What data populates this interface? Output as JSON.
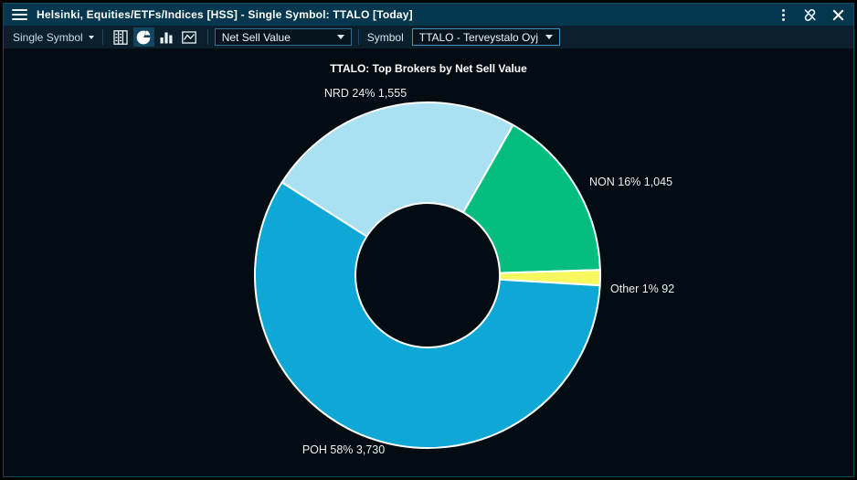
{
  "window": {
    "title": "Helsinki, Equities/ETFs/Indices [HSS] - Single Symbol: TTALO [Today]"
  },
  "toolbar": {
    "mode_select": "Single Symbol",
    "chart_type_buttons": [
      {
        "name": "table-view",
        "active": false
      },
      {
        "name": "pie-chart-view",
        "active": true
      },
      {
        "name": "bar-chart-view",
        "active": false
      },
      {
        "name": "boxed-chart-view",
        "active": false
      }
    ],
    "metric_select": "Net Sell Value",
    "symbol_label": "Symbol",
    "symbol_select": "TTALO - Terveystalo Oyj"
  },
  "colors": {
    "titlebar_bg": "#05384E",
    "toolbar_bg": "#0B202C",
    "chart_bg": "#030C12",
    "combo_border": "#2C7396",
    "slice_stroke": "#FFFFFF"
  },
  "chart_data": {
    "type": "pie",
    "donut": true,
    "title": "TTALO: Top Brokers by Net Sell Value",
    "start_angle_deg": 302.5,
    "legend": "none",
    "slices": [
      {
        "name": "NRD",
        "value": 1555,
        "pct": 24,
        "label": "NRD 24% 1,555",
        "color": "#A9E0F2"
      },
      {
        "name": "NON",
        "value": 1045,
        "pct": 16,
        "label": "NON 16% 1,045",
        "color": "#04BD7E"
      },
      {
        "name": "Other",
        "value": 92,
        "pct": 1,
        "label": "Other 1% 92",
        "color": "#F7F75F"
      },
      {
        "name": "POH",
        "value": 3730,
        "pct": 58,
        "label": "POH 58% 3,730",
        "color": "#0FA7D6"
      }
    ]
  }
}
